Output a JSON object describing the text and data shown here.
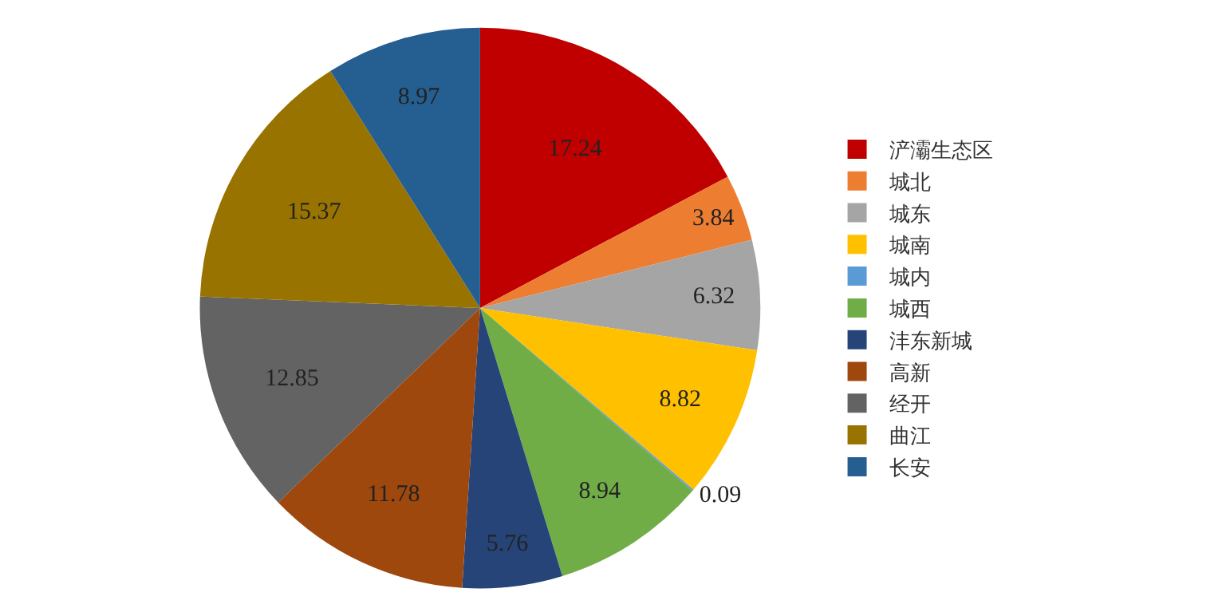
{
  "chart_data": {
    "type": "pie",
    "categories": [
      "浐灞生态区",
      "城北",
      "城东",
      "城南",
      "城内",
      "城西",
      "沣东新城",
      "高新",
      "经开",
      "曲江",
      "长安"
    ],
    "values": [
      17.24,
      3.84,
      6.32,
      8.82,
      0.09,
      8.94,
      5.76,
      11.78,
      12.85,
      15.37,
      8.97
    ],
    "colors": [
      "#c00000",
      "#ed7d31",
      "#a5a5a5",
      "#ffc000",
      "#5b9bd5",
      "#70ad47",
      "#264478",
      "#9e480e",
      "#636363",
      "#997300",
      "#255e91"
    ],
    "data_labels": true,
    "legend": "right"
  }
}
